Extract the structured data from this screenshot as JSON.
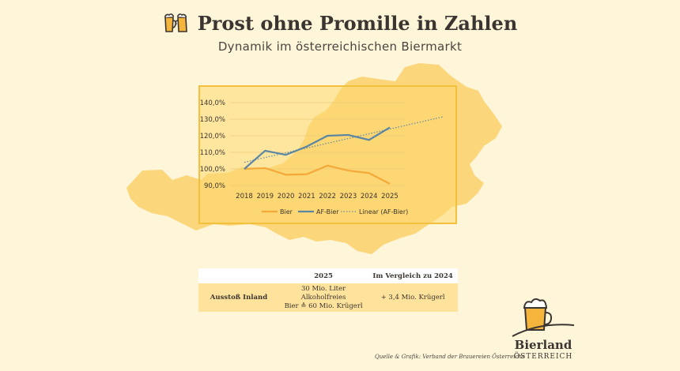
{
  "header": {
    "title": "Prost ohne Promille in Zahlen",
    "subtitle": "Dynamik im österreichischen Biermarkt",
    "icon": "beer-mugs-icon"
  },
  "chart_data": {
    "type": "line",
    "x": [
      "2018",
      "2019",
      "2020",
      "2021",
      "2022",
      "2023",
      "2024",
      "2025"
    ],
    "y_ticks": [
      "140,0%",
      "130,0%",
      "120,0%",
      "110,0%",
      "100,0%",
      "90,0%"
    ],
    "ylim": [
      90,
      140
    ],
    "series": [
      {
        "name": "Bier",
        "color": "#f5a93b",
        "values": [
          100,
          100.5,
          96.5,
          96.8,
          102,
          99,
          97.5,
          91
        ]
      },
      {
        "name": "AF-Bier",
        "color": "#5b87a4",
        "values": [
          100,
          111,
          108.5,
          113.5,
          120,
          120.5,
          117.5,
          125
        ]
      },
      {
        "name": "Linear (AF-Bier)",
        "color": "#6a8fa3",
        "style": "dotted",
        "trend": [
          104,
          131.5
        ]
      }
    ],
    "legend_position": "bottom",
    "grid": true
  },
  "table": {
    "headers": [
      "",
      "2025",
      "Im Vergleich zu 2024"
    ],
    "row": {
      "label": "Ausstoß Inland",
      "value_line1": "30 Mio. Liter Alkoholfreies",
      "value_line2": "Bier ≙ 60 Mio. Krügerl",
      "comparison": "+ 3,4 Mio. Krügerl"
    }
  },
  "source": "Quelle & Grafik: Verband der Brauereien Österreichs",
  "logo": {
    "name": "Bierland",
    "country": "ÖSTERREICH",
    "icon": "beer-glass-logo-icon"
  },
  "colors": {
    "background": "#fff6da",
    "map": "#fbd67a",
    "text": "#3a3530"
  }
}
